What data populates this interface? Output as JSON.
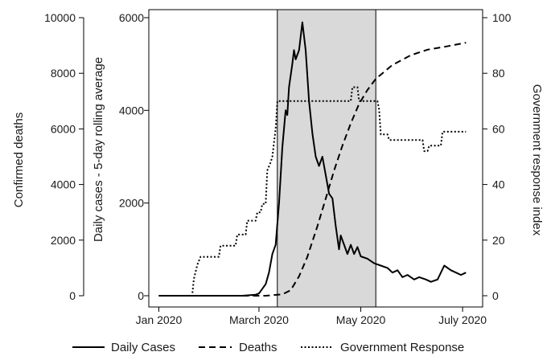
{
  "chart_data": {
    "type": "line",
    "x_axis": {
      "ticks": [
        {
          "date": "2020-01-01",
          "label": "Jan 2020"
        },
        {
          "date": "2020-03-01",
          "label": "March 2020"
        },
        {
          "date": "2020-05-01",
          "label": "May 2020"
        },
        {
          "date": "2020-07-01",
          "label": "July 2020"
        }
      ],
      "range": [
        "2019-12-26",
        "2020-07-13"
      ]
    },
    "left_axis": {
      "label": "Confirmed deaths",
      "ylim": [
        0,
        10000
      ],
      "ticks": [
        "0",
        "2000",
        "4000",
        "6000",
        "8000",
        "10000"
      ]
    },
    "middle_axis": {
      "label": "Daily cases - 5-day rolling average",
      "ylim": [
        0,
        6000
      ],
      "ticks": [
        "0",
        "2000",
        "4000",
        "6000"
      ]
    },
    "right_axis": {
      "label": "Government response index",
      "ylim": [
        0,
        100
      ],
      "ticks": [
        "0",
        "20",
        "40",
        "60",
        "80",
        "100"
      ]
    },
    "shaded_region": {
      "start": "2020-03-12",
      "end": "2020-05-10",
      "color": "#d9d9d9"
    },
    "grid": false,
    "legend_position": "bottom",
    "series": [
      {
        "name": "Daily Cases",
        "axis": "middle",
        "style": "solid",
        "points": [
          [
            "2020-01-01",
            0
          ],
          [
            "2020-02-20",
            0
          ],
          [
            "2020-02-28",
            20
          ],
          [
            "2020-03-01",
            50
          ],
          [
            "2020-03-03",
            150
          ],
          [
            "2020-03-05",
            250
          ],
          [
            "2020-03-07",
            500
          ],
          [
            "2020-03-09",
            900
          ],
          [
            "2020-03-11",
            1100
          ],
          [
            "2020-03-13",
            2000
          ],
          [
            "2020-03-15",
            3200
          ],
          [
            "2020-03-17",
            4000
          ],
          [
            "2020-03-18",
            3900
          ],
          [
            "2020-03-19",
            4500
          ],
          [
            "2020-03-21",
            5000
          ],
          [
            "2020-03-22",
            5300
          ],
          [
            "2020-03-23",
            5100
          ],
          [
            "2020-03-25",
            5300
          ],
          [
            "2020-03-27",
            5900
          ],
          [
            "2020-03-29",
            5300
          ],
          [
            "2020-03-31",
            4200
          ],
          [
            "2020-04-02",
            3500
          ],
          [
            "2020-04-04",
            3000
          ],
          [
            "2020-04-06",
            2800
          ],
          [
            "2020-04-08",
            3000
          ],
          [
            "2020-04-10",
            2600
          ],
          [
            "2020-04-12",
            2200
          ],
          [
            "2020-04-14",
            2100
          ],
          [
            "2020-04-16",
            1500
          ],
          [
            "2020-04-18",
            1000
          ],
          [
            "2020-04-19",
            1300
          ],
          [
            "2020-04-21",
            1100
          ],
          [
            "2020-04-23",
            900
          ],
          [
            "2020-04-25",
            1100
          ],
          [
            "2020-04-27",
            900
          ],
          [
            "2020-04-29",
            1050
          ],
          [
            "2020-05-01",
            850
          ],
          [
            "2020-05-05",
            800
          ],
          [
            "2020-05-09",
            700
          ],
          [
            "2020-05-13",
            650
          ],
          [
            "2020-05-17",
            600
          ],
          [
            "2020-05-20",
            500
          ],
          [
            "2020-05-23",
            550
          ],
          [
            "2020-05-26",
            400
          ],
          [
            "2020-05-29",
            450
          ],
          [
            "2020-06-02",
            350
          ],
          [
            "2020-06-05",
            400
          ],
          [
            "2020-06-09",
            350
          ],
          [
            "2020-06-12",
            300
          ],
          [
            "2020-06-16",
            350
          ],
          [
            "2020-06-20",
            650
          ],
          [
            "2020-06-24",
            550
          ],
          [
            "2020-06-27",
            500
          ],
          [
            "2020-06-30",
            450
          ],
          [
            "2020-07-03",
            500
          ]
        ]
      },
      {
        "name": "Deaths",
        "axis": "left",
        "style": "dashed",
        "points": [
          [
            "2020-01-01",
            0
          ],
          [
            "2020-03-05",
            0
          ],
          [
            "2020-03-15",
            50
          ],
          [
            "2020-03-20",
            200
          ],
          [
            "2020-03-25",
            700
          ],
          [
            "2020-03-30",
            1400
          ],
          [
            "2020-04-05",
            2500
          ],
          [
            "2020-04-10",
            3500
          ],
          [
            "2020-04-15",
            4500
          ],
          [
            "2020-04-20",
            5400
          ],
          [
            "2020-04-25",
            6200
          ],
          [
            "2020-04-30",
            6900
          ],
          [
            "2020-05-05",
            7400
          ],
          [
            "2020-05-10",
            7800
          ],
          [
            "2020-05-20",
            8300
          ],
          [
            "2020-05-31",
            8650
          ],
          [
            "2020-06-10",
            8850
          ],
          [
            "2020-06-20",
            8950
          ],
          [
            "2020-07-03",
            9100
          ]
        ]
      },
      {
        "name": "Government Response",
        "axis": "right",
        "style": "dotted",
        "points": [
          [
            "2020-01-01",
            0
          ],
          [
            "2020-01-21",
            0
          ],
          [
            "2020-01-22",
            6
          ],
          [
            "2020-01-24",
            11
          ],
          [
            "2020-01-26",
            14
          ],
          [
            "2020-02-06",
            14
          ],
          [
            "2020-02-07",
            18
          ],
          [
            "2020-02-16",
            18
          ],
          [
            "2020-02-17",
            22
          ],
          [
            "2020-02-22",
            22
          ],
          [
            "2020-02-23",
            27
          ],
          [
            "2020-02-28",
            27
          ],
          [
            "2020-02-29",
            30
          ],
          [
            "2020-03-02",
            30
          ],
          [
            "2020-03-03",
            33
          ],
          [
            "2020-03-05",
            33
          ],
          [
            "2020-03-06",
            45
          ],
          [
            "2020-03-08",
            48
          ],
          [
            "2020-03-09",
            50
          ],
          [
            "2020-03-10",
            55
          ],
          [
            "2020-03-11",
            60
          ],
          [
            "2020-03-12",
            70
          ],
          [
            "2020-04-25",
            70
          ],
          [
            "2020-04-26",
            75
          ],
          [
            "2020-04-29",
            75
          ],
          [
            "2020-04-30",
            70
          ],
          [
            "2020-05-11",
            70
          ],
          [
            "2020-05-12",
            67
          ],
          [
            "2020-05-13",
            58
          ],
          [
            "2020-05-17",
            58
          ],
          [
            "2020-05-18",
            56
          ],
          [
            "2020-06-07",
            56
          ],
          [
            "2020-06-08",
            52
          ],
          [
            "2020-06-10",
            52
          ],
          [
            "2020-06-11",
            54
          ],
          [
            "2020-06-18",
            54
          ],
          [
            "2020-06-19",
            59
          ],
          [
            "2020-07-03",
            59
          ]
        ]
      }
    ]
  },
  "legend": {
    "items": [
      {
        "label": "Daily Cases",
        "style": "solid"
      },
      {
        "label": "Deaths",
        "style": "dashed"
      },
      {
        "label": "Government Response",
        "style": "dotted"
      }
    ]
  },
  "colors": {
    "line": "#000000",
    "shade": "#d9d9d9",
    "text": "#1a1a1a"
  }
}
